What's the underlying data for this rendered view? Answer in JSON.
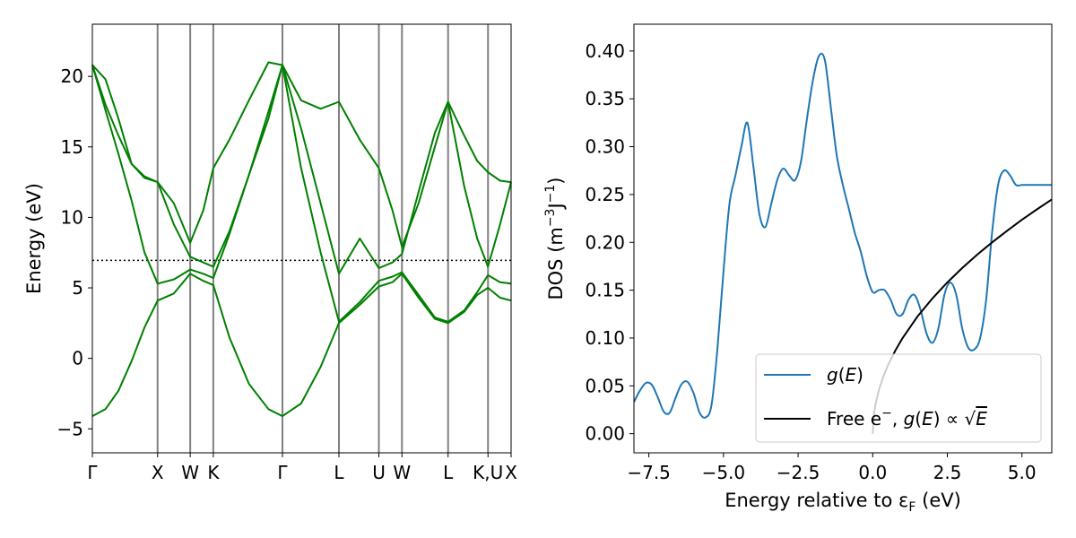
{
  "chart_data": [
    {
      "type": "line",
      "title": "",
      "ylabel": "Energy (eV)",
      "xlabel": "",
      "ylim": [
        -6.7,
        23.7
      ],
      "yticks": [
        -5,
        0,
        5,
        10,
        15,
        20
      ],
      "ytick_labels": [
        "−5",
        "0",
        "5",
        "10",
        "15",
        "20"
      ],
      "path_ticks": [
        {
          "label": "Γ",
          "pos": 0.0
        },
        {
          "label": "X",
          "pos": 1.0
        },
        {
          "label": "W",
          "pos": 1.5
        },
        {
          "label": "K",
          "pos": 1.854
        },
        {
          "label": "Γ",
          "pos": 2.914
        },
        {
          "label": "L",
          "pos": 3.78
        },
        {
          "label": "U",
          "pos": 4.392
        },
        {
          "label": "W",
          "pos": 4.746
        },
        {
          "label": "L",
          "pos": 5.453
        },
        {
          "label": "K,U",
          "pos": 6.065
        },
        {
          "label": "X",
          "pos": 6.419
        }
      ],
      "xlim": [
        0,
        6.419
      ],
      "fermi_level": 6.95,
      "band_color": "#008000",
      "vline_color": "#808080",
      "bands": [
        {
          "x": [
            0,
            0.2,
            0.4,
            0.6,
            0.8,
            1.0,
            1.25,
            1.5,
            1.7,
            1.854,
            2.1,
            2.4,
            2.7,
            2.914,
            3.2,
            3.5,
            3.78,
            4.1,
            4.392,
            4.6,
            4.746,
            5.0,
            5.25,
            5.453,
            5.7,
            5.9,
            6.065,
            6.25,
            6.419
          ],
          "y": [
            -4.1,
            -3.6,
            -2.3,
            -0.2,
            2.2,
            4.1,
            4.6,
            6.0,
            5.5,
            5.2,
            1.5,
            -1.8,
            -3.6,
            -4.1,
            -3.2,
            -0.6,
            2.5,
            3.8,
            5.1,
            5.4,
            6.0,
            4.3,
            2.8,
            2.5,
            3.3,
            4.5,
            5.0,
            4.3,
            4.1
          ]
        },
        {
          "x": [
            0,
            0.2,
            0.4,
            0.6,
            0.8,
            1.0,
            1.25,
            1.5,
            1.7,
            1.854,
            2.1,
            2.4,
            2.7,
            2.914,
            3.2,
            3.5,
            3.78,
            4.1,
            4.392,
            4.6,
            4.746,
            5.0,
            5.25,
            5.453,
            5.7,
            5.9,
            6.065,
            6.25,
            6.419
          ],
          "y": [
            20.8,
            17.6,
            14.5,
            11.2,
            7.5,
            5.3,
            5.6,
            6.3,
            6.0,
            5.7,
            8.8,
            13.0,
            17.5,
            20.8,
            13.5,
            7.5,
            2.6,
            4.0,
            5.5,
            5.8,
            6.1,
            4.5,
            2.9,
            2.6,
            3.4,
            4.7,
            5.9,
            5.4,
            5.3
          ]
        },
        {
          "x": [
            0,
            0.2,
            0.4,
            0.6,
            0.8,
            1.0,
            1.25,
            1.5,
            1.7,
            1.854,
            2.1,
            2.4,
            2.7,
            2.914,
            3.2,
            3.5,
            3.78,
            4.1,
            4.392,
            4.6,
            4.746,
            5.0,
            5.25,
            5.453,
            5.7,
            5.9,
            6.065,
            6.25,
            6.419
          ],
          "y": [
            20.8,
            18.0,
            15.8,
            13.8,
            12.8,
            12.5,
            9.5,
            7.2,
            6.8,
            6.5,
            9.0,
            13.0,
            17.0,
            20.8,
            16.3,
            11.0,
            6.0,
            8.5,
            6.4,
            6.8,
            7.4,
            11.8,
            16.0,
            18.2,
            12.2,
            8.5,
            6.5,
            9.5,
            12.5
          ]
        },
        {
          "x": [
            0,
            0.2,
            0.4,
            0.6,
            0.8,
            1.0,
            1.25,
            1.5,
            1.7,
            1.854,
            2.1,
            2.4,
            2.7,
            2.914,
            3.2,
            3.5,
            3.78,
            4.1,
            4.392,
            4.6,
            4.746,
            5.0,
            5.25,
            5.453,
            5.7,
            5.9,
            6.065,
            6.25,
            6.419
          ],
          "y": [
            20.8,
            19.8,
            17.0,
            13.8,
            12.9,
            12.5,
            11.0,
            8.2,
            10.5,
            13.5,
            15.5,
            18.3,
            21.0,
            20.8,
            18.3,
            17.7,
            18.2,
            15.5,
            13.5,
            10.5,
            7.9,
            11.0,
            15.0,
            18.2,
            15.8,
            14.0,
            13.2,
            12.6,
            12.5
          ]
        }
      ]
    },
    {
      "type": "line",
      "title": "",
      "xlabel": "Energy relative to ε",
      "xlabel_sub": "F",
      "xlabel_unit": " (eV)",
      "ylabel_prefix": "DOS (m",
      "ylabel_sup1": "−3",
      "ylabel_mid": "J",
      "ylabel_sup2": "−1",
      "ylabel_suffix": ")",
      "xlim": [
        -8.0,
        6.0
      ],
      "ylim": [
        -0.02,
        0.428
      ],
      "xticks": [
        -7.5,
        -5.0,
        -2.5,
        0.0,
        2.5,
        5.0
      ],
      "xtick_labels": [
        "−7.5",
        "−5.0",
        "−2.5",
        "0.0",
        "2.5",
        "5.0"
      ],
      "yticks": [
        0.0,
        0.05,
        0.1,
        0.15,
        0.2,
        0.25,
        0.3,
        0.35,
        0.4
      ],
      "ytick_labels": [
        "0.00",
        "0.05",
        "0.10",
        "0.15",
        "0.20",
        "0.25",
        "0.30",
        "0.35",
        "0.40"
      ],
      "legend_position": "lower-right",
      "series": [
        {
          "name": "g(E)",
          "color": "#1f77b4",
          "x": [
            -8.0,
            -7.8,
            -7.6,
            -7.4,
            -7.2,
            -7.0,
            -6.8,
            -6.6,
            -6.4,
            -6.2,
            -6.0,
            -5.8,
            -5.6,
            -5.4,
            -5.2,
            -5.0,
            -4.8,
            -4.6,
            -4.4,
            -4.2,
            -4.0,
            -3.8,
            -3.6,
            -3.4,
            -3.2,
            -3.0,
            -2.8,
            -2.6,
            -2.4,
            -2.2,
            -2.0,
            -1.8,
            -1.6,
            -1.4,
            -1.2,
            -1.0,
            -0.8,
            -0.6,
            -0.4,
            -0.2,
            0.0,
            0.2,
            0.4,
            0.6,
            0.8,
            1.0,
            1.2,
            1.4,
            1.6,
            1.8,
            2.0,
            2.2,
            2.4,
            2.6,
            2.8,
            3.0,
            3.2,
            3.4,
            3.6,
            3.8,
            4.0,
            4.2,
            4.4,
            4.6,
            4.8,
            5.0,
            5.2,
            5.4,
            5.6,
            5.8,
            6.0
          ],
          "y": [
            0.033,
            0.045,
            0.053,
            0.051,
            0.038,
            0.023,
            0.022,
            0.038,
            0.052,
            0.054,
            0.042,
            0.022,
            0.017,
            0.03,
            0.09,
            0.17,
            0.24,
            0.27,
            0.3,
            0.325,
            0.28,
            0.23,
            0.216,
            0.24,
            0.265,
            0.277,
            0.27,
            0.265,
            0.285,
            0.33,
            0.37,
            0.395,
            0.39,
            0.34,
            0.29,
            0.26,
            0.235,
            0.21,
            0.19,
            0.165,
            0.148,
            0.15,
            0.15,
            0.14,
            0.125,
            0.125,
            0.14,
            0.145,
            0.13,
            0.105,
            0.095,
            0.11,
            0.145,
            0.158,
            0.145,
            0.11,
            0.09,
            0.088,
            0.1,
            0.14,
            0.21,
            0.26,
            0.275,
            0.27,
            0.26,
            0.26,
            0.26,
            0.26,
            0.26,
            0.26,
            0.26
          ]
        },
        {
          "name": "Free e⁻, g(E) ∝ √E",
          "color": "#000000",
          "x": [
            0.0,
            0.05,
            0.1,
            0.2,
            0.35,
            0.5,
            0.75,
            1.0,
            1.5,
            2.0,
            2.5,
            3.0,
            3.5,
            4.0,
            4.5,
            5.0,
            5.5,
            6.0
          ],
          "y": [
            0.0,
            0.0223,
            0.0316,
            0.0447,
            0.0592,
            0.0707,
            0.0866,
            0.1,
            0.1225,
            0.1414,
            0.1581,
            0.1732,
            0.1871,
            0.2,
            0.2121,
            0.2236,
            0.2345,
            0.2449
          ]
        }
      ]
    }
  ]
}
